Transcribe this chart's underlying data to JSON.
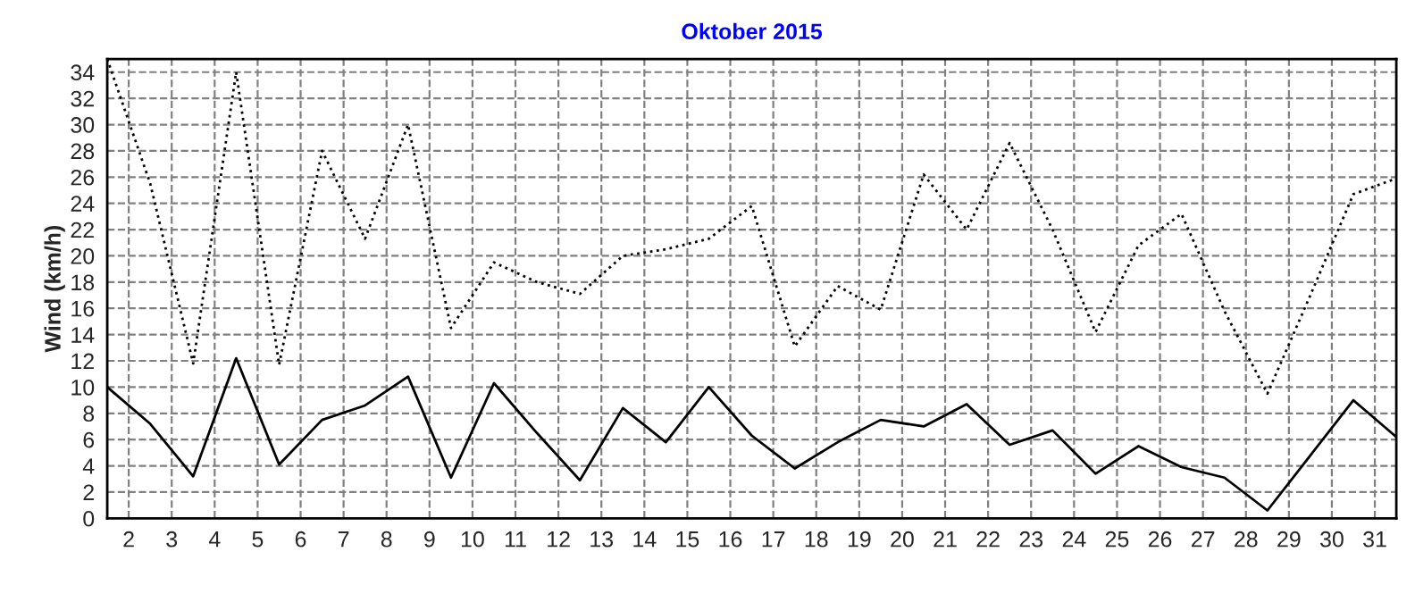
{
  "chart_data": {
    "type": "line",
    "title": "Oktober 2015",
    "ylabel": "Wind (km/h)",
    "x": [
      1.5,
      2.5,
      3.5,
      4.5,
      5.5,
      6.5,
      7.5,
      8.5,
      9.5,
      10.5,
      11.5,
      12.5,
      13.5,
      14.5,
      15.5,
      16.5,
      17.5,
      18.5,
      19.5,
      20.5,
      21.5,
      22.5,
      23.5,
      24.5,
      25.5,
      26.5,
      27.5,
      28.5,
      29.5,
      30.5,
      31.5
    ],
    "series": [
      {
        "color": "#000000",
        "line_style": "dotted",
        "values": [
          35,
          25.5,
          11.8,
          34,
          11.7,
          28,
          21.3,
          30,
          14.5,
          19.5,
          18,
          17.1,
          20,
          20.5,
          21.3,
          23.8,
          13.1,
          17.7,
          15.9,
          26.2,
          22,
          28.6,
          22,
          14.2,
          20.8,
          23.2,
          15.8,
          9.5,
          17,
          24.7,
          25.9
        ]
      },
      {
        "color": "#000000",
        "line_style": "solid",
        "values": [
          10,
          7.2,
          3.2,
          12.2,
          4.1,
          7.5,
          8.6,
          10.8,
          3.1,
          10.3,
          6.5,
          2.9,
          8.4,
          5.8,
          10,
          6.3,
          3.8,
          5.8,
          7.5,
          7,
          8.7,
          5.6,
          6.7,
          3.4,
          5.5,
          3.9,
          3.1,
          0.6,
          4.8,
          9,
          6.2
        ]
      }
    ],
    "xlim": [
      1.5,
      31.5
    ],
    "xticks": [
      2,
      3,
      4,
      5,
      6,
      7,
      8,
      9,
      10,
      11,
      12,
      13,
      14,
      15,
      16,
      17,
      18,
      19,
      20,
      21,
      22,
      23,
      24,
      25,
      26,
      27,
      28,
      29,
      30,
      31
    ],
    "ylim": [
      0,
      35
    ],
    "yticks": [
      0,
      2,
      4,
      6,
      8,
      10,
      12,
      14,
      16,
      18,
      20,
      22,
      24,
      26,
      28,
      30,
      32,
      34
    ],
    "grid": true,
    "marker": "none"
  }
}
